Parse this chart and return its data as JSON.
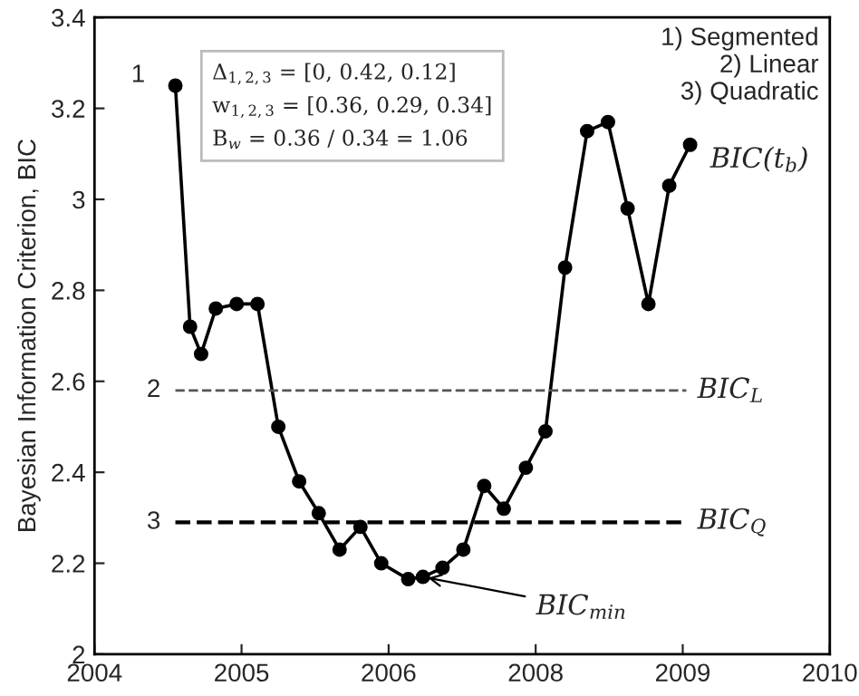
{
  "chart_data": {
    "type": "line",
    "ylabel": "Bayesian Information Criterion, BIC",
    "x": [
      2004.66,
      2004.78,
      2004.87,
      2004.99,
      2005.16,
      2005.33,
      2005.5,
      2005.67,
      2005.83,
      2006.0,
      2006.17,
      2006.34,
      2006.56,
      2006.68,
      2006.84,
      2007.01,
      2007.18,
      2007.34,
      2007.52,
      2007.68,
      2007.84,
      2008.02,
      2008.19,
      2008.35,
      2008.52,
      2008.69,
      2008.86
    ],
    "series": [
      {
        "color": "#000000",
        "values": [
          3.25,
          2.72,
          2.66,
          2.76,
          2.77,
          2.77,
          2.5,
          2.38,
          2.31,
          2.23,
          2.28,
          2.2,
          2.165,
          2.17,
          2.19,
          2.23,
          2.37,
          2.32,
          2.41,
          2.49,
          2.85,
          3.15,
          3.17,
          2.98,
          2.77,
          3.03,
          3.12
        ]
      }
    ],
    "marker": "circle",
    "line_style": "solid",
    "grid": false,
    "legend": false,
    "xlim": [
      2004,
      2010
    ],
    "xticks": [
      2004,
      {
        "value": 2005.2,
        "label": "2005"
      },
      {
        "value": 2006.4,
        "label": "2006"
      },
      {
        "value": 2007.6,
        "label": "2008"
      },
      {
        "value": 2008.8,
        "label": "2009"
      },
      2010
    ],
    "ylim": [
      2,
      3.4
    ],
    "yticks": [
      2,
      2.2,
      2.4,
      2.6,
      2.8,
      3,
      3.2,
      3.4
    ],
    "ref_lines": [
      {
        "axis": "y",
        "value": 2.58,
        "label": "BIC$_{L}$",
        "color": "#555555",
        "line_style": "dashed"
      },
      {
        "axis": "y",
        "value": 2.29,
        "label": "BIC$_{Q}$",
        "color": "#000000",
        "line_style": "dashed"
      }
    ],
    "annotations": [
      {
        "text": "1",
        "x": 2004.66,
        "y": 3.25
      },
      {
        "text": "BIC(t$_{b}$)",
        "x": 2008.86,
        "y": 3.12
      },
      {
        "text": "BIC$_{min}$",
        "x": 2006.68,
        "y": 2.17
      },
      "Δ$_{1,2,3}$ = [0, 0.42, 0.12]\nw$_{1,2,3}$ = [0.36, 0.29, 0.34]\nB$_{w}$ = 0.36 / 0.34 = 1.06",
      "1) Segmented\n2) Linear\n3) Quadratic",
      "2",
      "3"
    ]
  }
}
